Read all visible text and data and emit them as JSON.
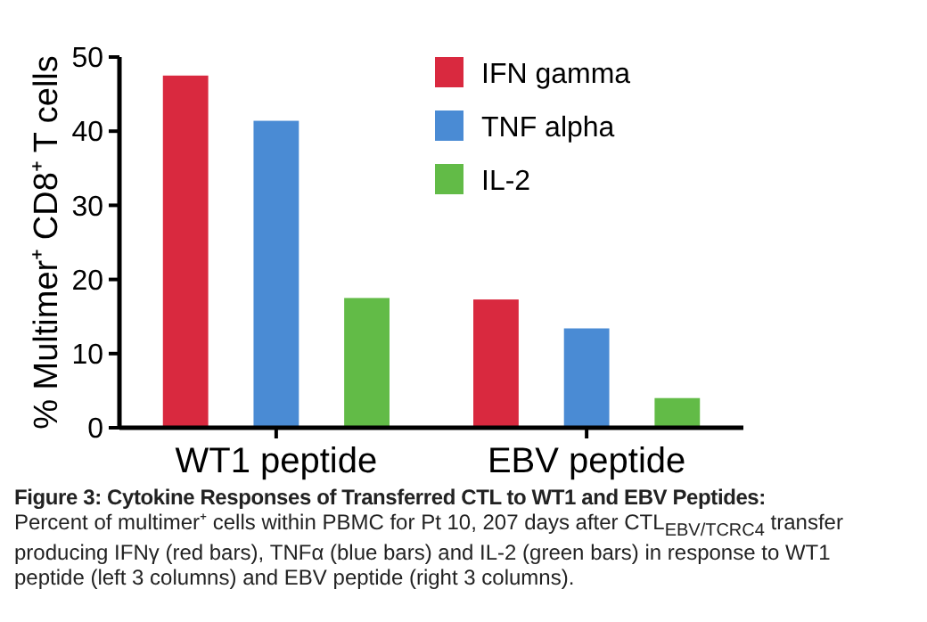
{
  "chart_data": {
    "type": "bar",
    "title": "Figure 3: Cytokine Responses of Transferred CTL to WT1 and EBV Peptides:",
    "ylabel": "% Multimer⁺ CD8⁺ T cells",
    "annotations": [
      "Percent of multimer⁺ cells within PBMC for Pt 10, 207 days after CTL$_{EBV/TCRC4}$ transfer producing IFNγ (red bars), TNFα (blue bars) and IL-2 (green bars) in response to WT1 peptide (left 3 columns) and EBV peptide (right 3 columns)."
    ],
    "categories": [
      "WT1 peptide",
      "EBV peptide"
    ],
    "series": [
      {
        "name": "IFN gamma",
        "color": "#d9293f",
        "values": [
          47.5,
          17.3
        ]
      },
      {
        "name": "TNF alpha",
        "color": "#4a8bd4",
        "values": [
          41.4,
          13.4
        ]
      },
      {
        "name": "IL-2",
        "color": "#62bb47",
        "values": [
          17.5,
          4.0
        ]
      }
    ],
    "ylim": [
      0,
      50
    ],
    "yticks": [
      0,
      10,
      20,
      30,
      40,
      50
    ],
    "legend": "top right"
  }
}
